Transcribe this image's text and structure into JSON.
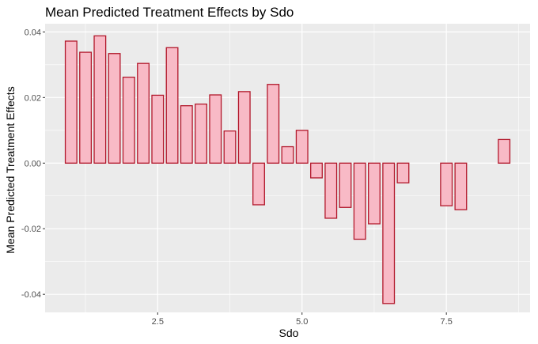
{
  "chart_data": {
    "type": "bar",
    "title": "Mean Predicted Treatment Effects by Sdo",
    "xlabel": "Sdo",
    "ylabel": "Mean Predicted Treatment Effects",
    "xlim": [
      0.55,
      8.95
    ],
    "ylim": [
      -0.0455,
      0.0425
    ],
    "bar_width": 0.2,
    "x_ticks": [
      2.5,
      5.0,
      7.5
    ],
    "x_tick_labels": [
      "2.5",
      "5.0",
      "7.5"
    ],
    "y_ticks": [
      -0.04,
      -0.02,
      0.0,
      0.02,
      0.04
    ],
    "y_tick_labels": [
      "-0.04",
      "-0.02",
      "0.00",
      "0.02",
      "0.04"
    ],
    "grid": true,
    "colors": {
      "fill": "#f8bac6",
      "stroke": "#b2182b",
      "panel": "#ebebeb",
      "grid": "#ffffff"
    },
    "points": [
      {
        "x": 1.0,
        "y": 0.0372
      },
      {
        "x": 1.25,
        "y": 0.0338
      },
      {
        "x": 1.5,
        "y": 0.0388
      },
      {
        "x": 1.75,
        "y": 0.0334
      },
      {
        "x": 2.0,
        "y": 0.0262
      },
      {
        "x": 2.25,
        "y": 0.0304
      },
      {
        "x": 2.5,
        "y": 0.0207
      },
      {
        "x": 2.75,
        "y": 0.0352
      },
      {
        "x": 3.0,
        "y": 0.0175
      },
      {
        "x": 3.25,
        "y": 0.018
      },
      {
        "x": 3.5,
        "y": 0.0208
      },
      {
        "x": 3.75,
        "y": 0.0098
      },
      {
        "x": 4.0,
        "y": 0.0218
      },
      {
        "x": 4.25,
        "y": -0.0127
      },
      {
        "x": 4.5,
        "y": 0.024
      },
      {
        "x": 4.75,
        "y": 0.005
      },
      {
        "x": 5.0,
        "y": 0.01
      },
      {
        "x": 5.25,
        "y": -0.0045
      },
      {
        "x": 5.5,
        "y": -0.0168
      },
      {
        "x": 5.75,
        "y": -0.0135
      },
      {
        "x": 6.0,
        "y": -0.0232
      },
      {
        "x": 6.25,
        "y": -0.0185
      },
      {
        "x": 6.5,
        "y": -0.0428
      },
      {
        "x": 6.75,
        "y": -0.006
      },
      {
        "x": 7.5,
        "y": -0.013
      },
      {
        "x": 7.75,
        "y": -0.0142
      },
      {
        "x": 8.5,
        "y": 0.0072
      }
    ]
  }
}
